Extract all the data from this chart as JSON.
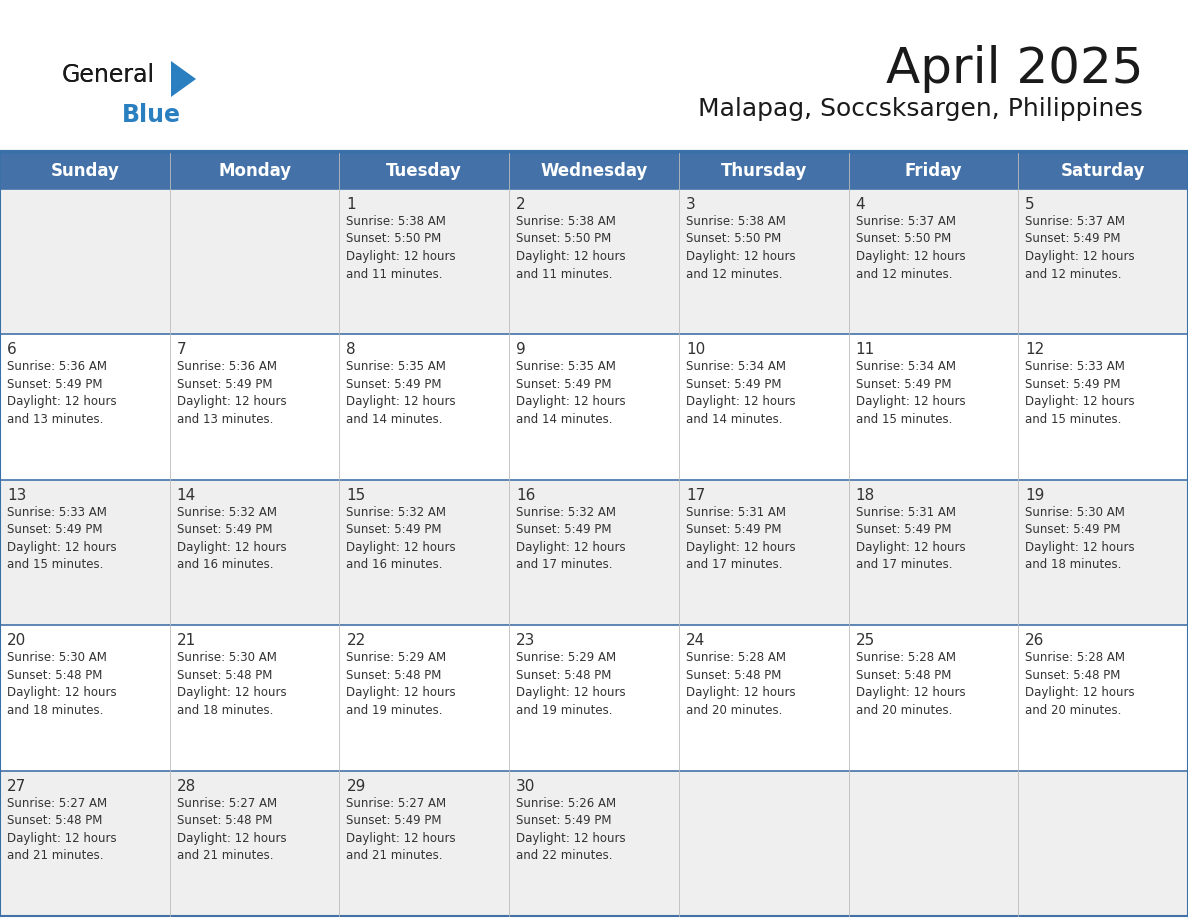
{
  "title": "April 2025",
  "subtitle": "Malapag, Soccsksargen, Philippines",
  "header_color": "#4472a8",
  "header_text_color": "#ffffff",
  "row_bg_gray": "#efefef",
  "row_bg_white": "#ffffff",
  "border_color": "#3a70a8",
  "row_sep_color": "#4472a8",
  "text_color": "#333333",
  "days_of_week": [
    "Sunday",
    "Monday",
    "Tuesday",
    "Wednesday",
    "Thursday",
    "Friday",
    "Saturday"
  ],
  "calendar_data": [
    [
      {
        "day": "",
        "info": ""
      },
      {
        "day": "",
        "info": ""
      },
      {
        "day": "1",
        "info": "Sunrise: 5:38 AM\nSunset: 5:50 PM\nDaylight: 12 hours\nand 11 minutes."
      },
      {
        "day": "2",
        "info": "Sunrise: 5:38 AM\nSunset: 5:50 PM\nDaylight: 12 hours\nand 11 minutes."
      },
      {
        "day": "3",
        "info": "Sunrise: 5:38 AM\nSunset: 5:50 PM\nDaylight: 12 hours\nand 12 minutes."
      },
      {
        "day": "4",
        "info": "Sunrise: 5:37 AM\nSunset: 5:50 PM\nDaylight: 12 hours\nand 12 minutes."
      },
      {
        "day": "5",
        "info": "Sunrise: 5:37 AM\nSunset: 5:49 PM\nDaylight: 12 hours\nand 12 minutes."
      }
    ],
    [
      {
        "day": "6",
        "info": "Sunrise: 5:36 AM\nSunset: 5:49 PM\nDaylight: 12 hours\nand 13 minutes."
      },
      {
        "day": "7",
        "info": "Sunrise: 5:36 AM\nSunset: 5:49 PM\nDaylight: 12 hours\nand 13 minutes."
      },
      {
        "day": "8",
        "info": "Sunrise: 5:35 AM\nSunset: 5:49 PM\nDaylight: 12 hours\nand 14 minutes."
      },
      {
        "day": "9",
        "info": "Sunrise: 5:35 AM\nSunset: 5:49 PM\nDaylight: 12 hours\nand 14 minutes."
      },
      {
        "day": "10",
        "info": "Sunrise: 5:34 AM\nSunset: 5:49 PM\nDaylight: 12 hours\nand 14 minutes."
      },
      {
        "day": "11",
        "info": "Sunrise: 5:34 AM\nSunset: 5:49 PM\nDaylight: 12 hours\nand 15 minutes."
      },
      {
        "day": "12",
        "info": "Sunrise: 5:33 AM\nSunset: 5:49 PM\nDaylight: 12 hours\nand 15 minutes."
      }
    ],
    [
      {
        "day": "13",
        "info": "Sunrise: 5:33 AM\nSunset: 5:49 PM\nDaylight: 12 hours\nand 15 minutes."
      },
      {
        "day": "14",
        "info": "Sunrise: 5:32 AM\nSunset: 5:49 PM\nDaylight: 12 hours\nand 16 minutes."
      },
      {
        "day": "15",
        "info": "Sunrise: 5:32 AM\nSunset: 5:49 PM\nDaylight: 12 hours\nand 16 minutes."
      },
      {
        "day": "16",
        "info": "Sunrise: 5:32 AM\nSunset: 5:49 PM\nDaylight: 12 hours\nand 17 minutes."
      },
      {
        "day": "17",
        "info": "Sunrise: 5:31 AM\nSunset: 5:49 PM\nDaylight: 12 hours\nand 17 minutes."
      },
      {
        "day": "18",
        "info": "Sunrise: 5:31 AM\nSunset: 5:49 PM\nDaylight: 12 hours\nand 17 minutes."
      },
      {
        "day": "19",
        "info": "Sunrise: 5:30 AM\nSunset: 5:49 PM\nDaylight: 12 hours\nand 18 minutes."
      }
    ],
    [
      {
        "day": "20",
        "info": "Sunrise: 5:30 AM\nSunset: 5:48 PM\nDaylight: 12 hours\nand 18 minutes."
      },
      {
        "day": "21",
        "info": "Sunrise: 5:30 AM\nSunset: 5:48 PM\nDaylight: 12 hours\nand 18 minutes."
      },
      {
        "day": "22",
        "info": "Sunrise: 5:29 AM\nSunset: 5:48 PM\nDaylight: 12 hours\nand 19 minutes."
      },
      {
        "day": "23",
        "info": "Sunrise: 5:29 AM\nSunset: 5:48 PM\nDaylight: 12 hours\nand 19 minutes."
      },
      {
        "day": "24",
        "info": "Sunrise: 5:28 AM\nSunset: 5:48 PM\nDaylight: 12 hours\nand 20 minutes."
      },
      {
        "day": "25",
        "info": "Sunrise: 5:28 AM\nSunset: 5:48 PM\nDaylight: 12 hours\nand 20 minutes."
      },
      {
        "day": "26",
        "info": "Sunrise: 5:28 AM\nSunset: 5:48 PM\nDaylight: 12 hours\nand 20 minutes."
      }
    ],
    [
      {
        "day": "27",
        "info": "Sunrise: 5:27 AM\nSunset: 5:48 PM\nDaylight: 12 hours\nand 21 minutes."
      },
      {
        "day": "28",
        "info": "Sunrise: 5:27 AM\nSunset: 5:48 PM\nDaylight: 12 hours\nand 21 minutes."
      },
      {
        "day": "29",
        "info": "Sunrise: 5:27 AM\nSunset: 5:49 PM\nDaylight: 12 hours\nand 21 minutes."
      },
      {
        "day": "30",
        "info": "Sunrise: 5:26 AM\nSunset: 5:49 PM\nDaylight: 12 hours\nand 22 minutes."
      },
      {
        "day": "",
        "info": ""
      },
      {
        "day": "",
        "info": ""
      },
      {
        "day": "",
        "info": ""
      }
    ]
  ],
  "logo_general_color": "#1a1a1a",
  "logo_blue_color": "#2a7fc1",
  "logo_triangle_color": "#2a7fc1",
  "title_fontsize": 36,
  "subtitle_fontsize": 18,
  "dow_fontsize": 12,
  "day_num_fontsize": 11,
  "info_fontsize": 8.5
}
